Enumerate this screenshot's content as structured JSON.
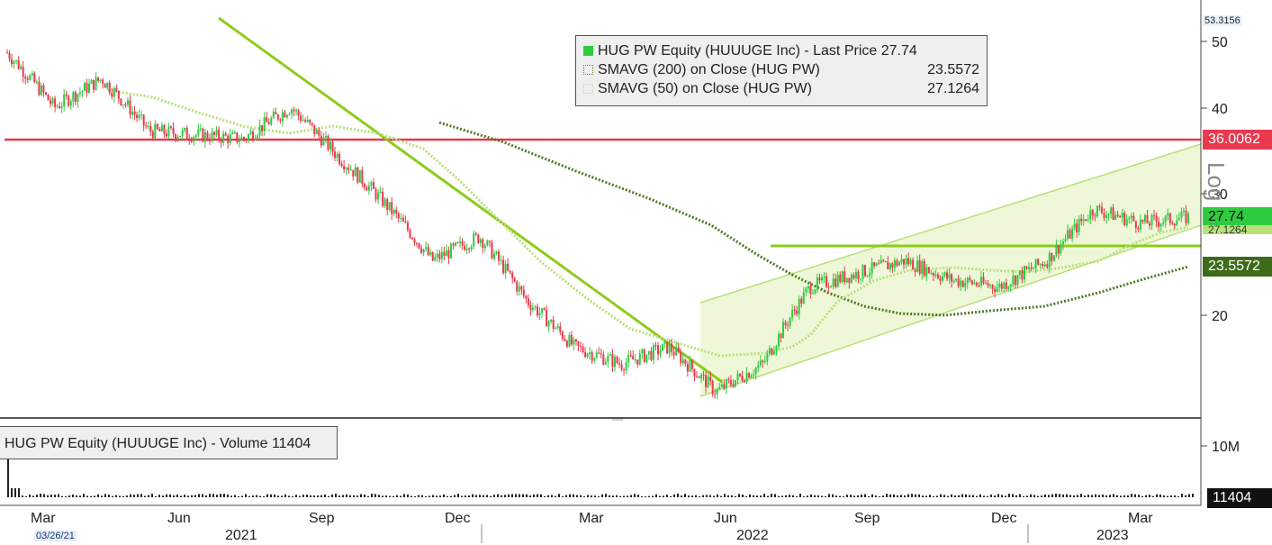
{
  "chart_data": {
    "type": "candlestick",
    "ticker_series": "HUG PW Equity (HUUUGE Inc) - Last Price",
    "last_price": "27.74",
    "y_scale": "log",
    "y_axis_label": "Log",
    "y_ticks": [
      "50",
      "40",
      "30",
      "20"
    ],
    "y_top_label": "53.3156",
    "x_month_labels": [
      "Mar",
      "Jun",
      "Sep",
      "Dec",
      "Mar",
      "Jun",
      "Sep",
      "Dec",
      "Mar"
    ],
    "x_year_labels": [
      "2021",
      "2022",
      "2023"
    ],
    "start_date_label": "03/26/21",
    "legend": [
      {
        "name": "HUG PW Equity (HUUUGE Inc) - Last Price",
        "value": "27.74",
        "color": "#2ecc40"
      },
      {
        "name": "SMAVG (200)  on Close (HUG PW)",
        "value": "23.5572",
        "color": "#5a8a2a"
      },
      {
        "name": "SMAVG (50)  on Close (HUG PW)",
        "value": "27.1264",
        "color": "#b8e07a"
      }
    ],
    "price_tags": [
      {
        "value": "36.0062",
        "color": "#e8394d"
      },
      {
        "value": "27.74",
        "color": "#2ecc40"
      },
      {
        "value": "27.1264",
        "color": "#b8e07a"
      },
      {
        "value": "23.5572",
        "color": "#3d6b1a"
      }
    ],
    "horizontal_lines": [
      {
        "level": 36.0062,
        "color": "#e8394d"
      },
      {
        "level": 24.2,
        "color": "#8ccc1a"
      }
    ],
    "price_path_approx": [
      {
        "date": "2021-03",
        "price": 48
      },
      {
        "date": "2021-04",
        "price": 40
      },
      {
        "date": "2021-05",
        "price": 44
      },
      {
        "date": "2021-06",
        "price": 37
      },
      {
        "date": "2021-07",
        "price": 36.5
      },
      {
        "date": "2021-08",
        "price": 36
      },
      {
        "date": "2021-09",
        "price": 40
      },
      {
        "date": "2021-10",
        "price": 34
      },
      {
        "date": "2021-11",
        "price": 29
      },
      {
        "date": "2021-12",
        "price": 24
      },
      {
        "date": "2022-01",
        "price": 26
      },
      {
        "date": "2022-02",
        "price": 21
      },
      {
        "date": "2022-03",
        "price": 18
      },
      {
        "date": "2022-04",
        "price": 17
      },
      {
        "date": "2022-05",
        "price": 18
      },
      {
        "date": "2022-06",
        "price": 15.5
      },
      {
        "date": "2022-07",
        "price": 17
      },
      {
        "date": "2022-08",
        "price": 22
      },
      {
        "date": "2022-09",
        "price": 23
      },
      {
        "date": "2022-10",
        "price": 24
      },
      {
        "date": "2022-11",
        "price": 22.5
      },
      {
        "date": "2022-12",
        "price": 22
      },
      {
        "date": "2023-01",
        "price": 24
      },
      {
        "date": "2023-02",
        "price": 28.5
      },
      {
        "date": "2023-03",
        "price": 27.2
      },
      {
        "date": "2023-04",
        "price": 27.74
      }
    ],
    "volume": {
      "label": "HUG PW Equity (HUUUGE Inc) - Volume",
      "last_value": "11404",
      "y_ticks": [
        "10M"
      ]
    }
  }
}
